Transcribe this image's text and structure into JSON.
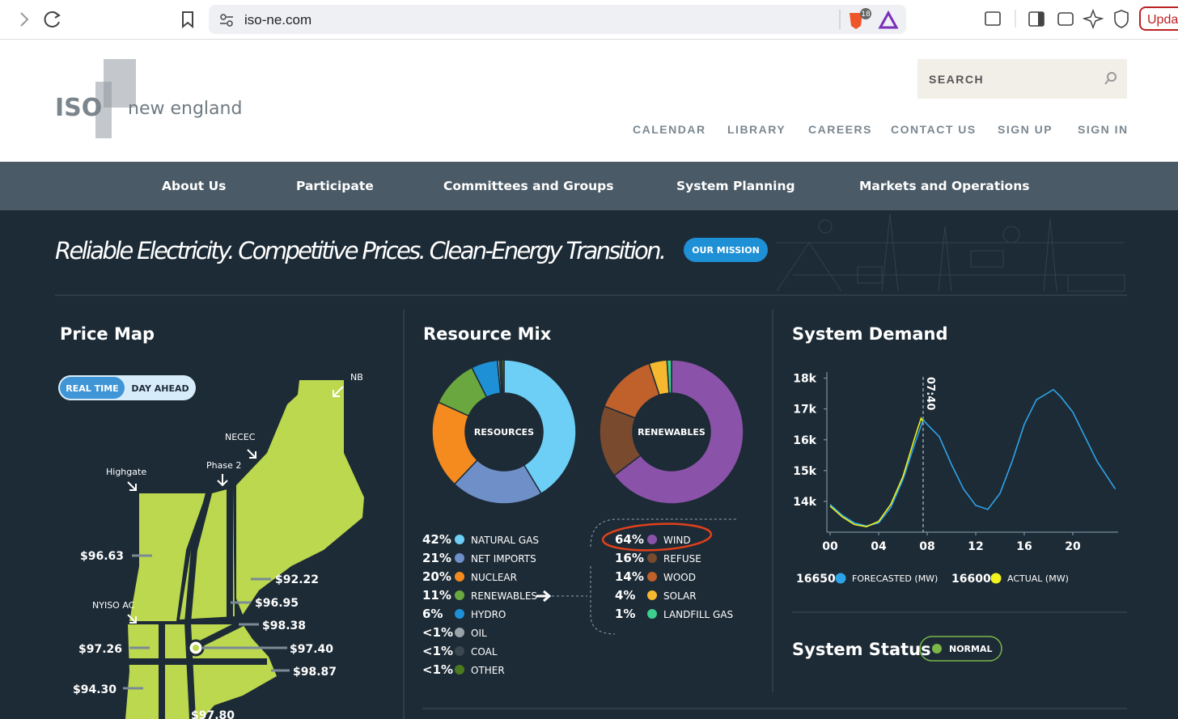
{
  "browser": {
    "url": "iso-ne.com",
    "badge": "18",
    "update": "Upda"
  },
  "header": {
    "logo": "ISO",
    "logo_text": "new england",
    "search": "SEARCH",
    "links": [
      "CALENDAR",
      "LIBRARY",
      "CAREERS",
      "CONTACT US",
      "SIGN UP",
      "SIGN IN"
    ]
  },
  "nav": [
    "About Us",
    "Participate",
    "Committees and Groups",
    "System Planning",
    "Markets and Operations"
  ],
  "hero": {
    "tagline": "Reliable Electricity. Competitive Prices. Clean-Energy Transition.",
    "button": "OUR MISSION"
  },
  "price_map": {
    "title": "Price Map",
    "toggle": [
      "REAL TIME",
      "DAY AHEAD"
    ],
    "labels": [
      "NB",
      "NECEC",
      "Phase 2",
      "Highgate",
      "NYISO AC"
    ],
    "prices": [
      "$96.63",
      "$92.22",
      "$96.95",
      "$98.38",
      "$97.26",
      "$97.40",
      "$98.87",
      "$94.30",
      "$97.80"
    ]
  },
  "chart_data": [
    {
      "type": "pie",
      "title": "Resource Mix",
      "center_label": "RESOURCES",
      "categories": [
        "NATURAL GAS",
        "NET IMPORTS",
        "NUCLEAR",
        "RENEWABLES",
        "HYDRO",
        "OIL",
        "COAL",
        "OTHER"
      ],
      "values": [
        42,
        21,
        20,
        11,
        6,
        0.5,
        0.5,
        0.5
      ],
      "value_labels": [
        "42%",
        "21%",
        "20%",
        "11%",
        "6%",
        "<1%",
        "<1%",
        "<1%"
      ],
      "colors": [
        "#6dcff6",
        "#6f8fc9",
        "#f58b1f",
        "#6aa83f",
        "#1e90d6",
        "#9aa3a8",
        "#3a4750",
        "#4a7a1e"
      ]
    },
    {
      "type": "pie",
      "center_label": "RENEWABLES",
      "categories": [
        "WIND",
        "REFUSE",
        "WOOD",
        "SOLAR",
        "LANDFILL GAS"
      ],
      "values": [
        64,
        16,
        14,
        4,
        1
      ],
      "value_labels": [
        "64%",
        "16%",
        "14%",
        "4%",
        "1%"
      ],
      "colors": [
        "#8a52a8",
        "#7a4a2e",
        "#c0602a",
        "#f5b82e",
        "#3ecf8e"
      ]
    },
    {
      "type": "line",
      "title": "System Demand",
      "xlim": [
        0,
        24
      ],
      "xticks": [
        {
          "value": 0,
          "label": "00"
        },
        {
          "value": 4,
          "label": "04"
        },
        {
          "value": 8,
          "label": "08"
        },
        {
          "value": 12,
          "label": "12"
        },
        {
          "value": 16,
          "label": "16"
        },
        {
          "value": 20,
          "label": "20"
        }
      ],
      "ylim": [
        13000,
        18200
      ],
      "yticks": [
        {
          "value": 14000,
          "label": "14k"
        },
        {
          "value": 15000,
          "label": "15k"
        },
        {
          "value": 16000,
          "label": "16k"
        },
        {
          "value": 17000,
          "label": "17k"
        },
        {
          "value": 18000,
          "label": "18k"
        }
      ],
      "marker": {
        "x": 7.667,
        "label": "07:40"
      },
      "series": [
        {
          "name": "FORECASTED (MW)",
          "color": "#2ea3e8",
          "current": 16650,
          "x": [
            0,
            1,
            2,
            3,
            4,
            5,
            6,
            7,
            7.667,
            8,
            9,
            10,
            11,
            12,
            13,
            14,
            15,
            16,
            17,
            18.4,
            19,
            20,
            21,
            22,
            23.5
          ],
          "values": [
            13900,
            13550,
            13300,
            13200,
            13300,
            13800,
            14700,
            15900,
            16650,
            16500,
            16100,
            15200,
            14400,
            13870,
            13740,
            14260,
            15300,
            16500,
            17300,
            17630,
            17400,
            16900,
            16100,
            15300,
            14400
          ]
        },
        {
          "name": "ACTUAL (MW)",
          "color": "#f2f21d",
          "current": 16600,
          "x": [
            0,
            1,
            2,
            3,
            4,
            5,
            6,
            7,
            7.5,
            7.667
          ],
          "values": [
            13850,
            13500,
            13250,
            13180,
            13350,
            13900,
            14800,
            16100,
            16700,
            16600
          ]
        }
      ]
    }
  ],
  "system_status": {
    "title": "System Status",
    "status": "NORMAL"
  }
}
